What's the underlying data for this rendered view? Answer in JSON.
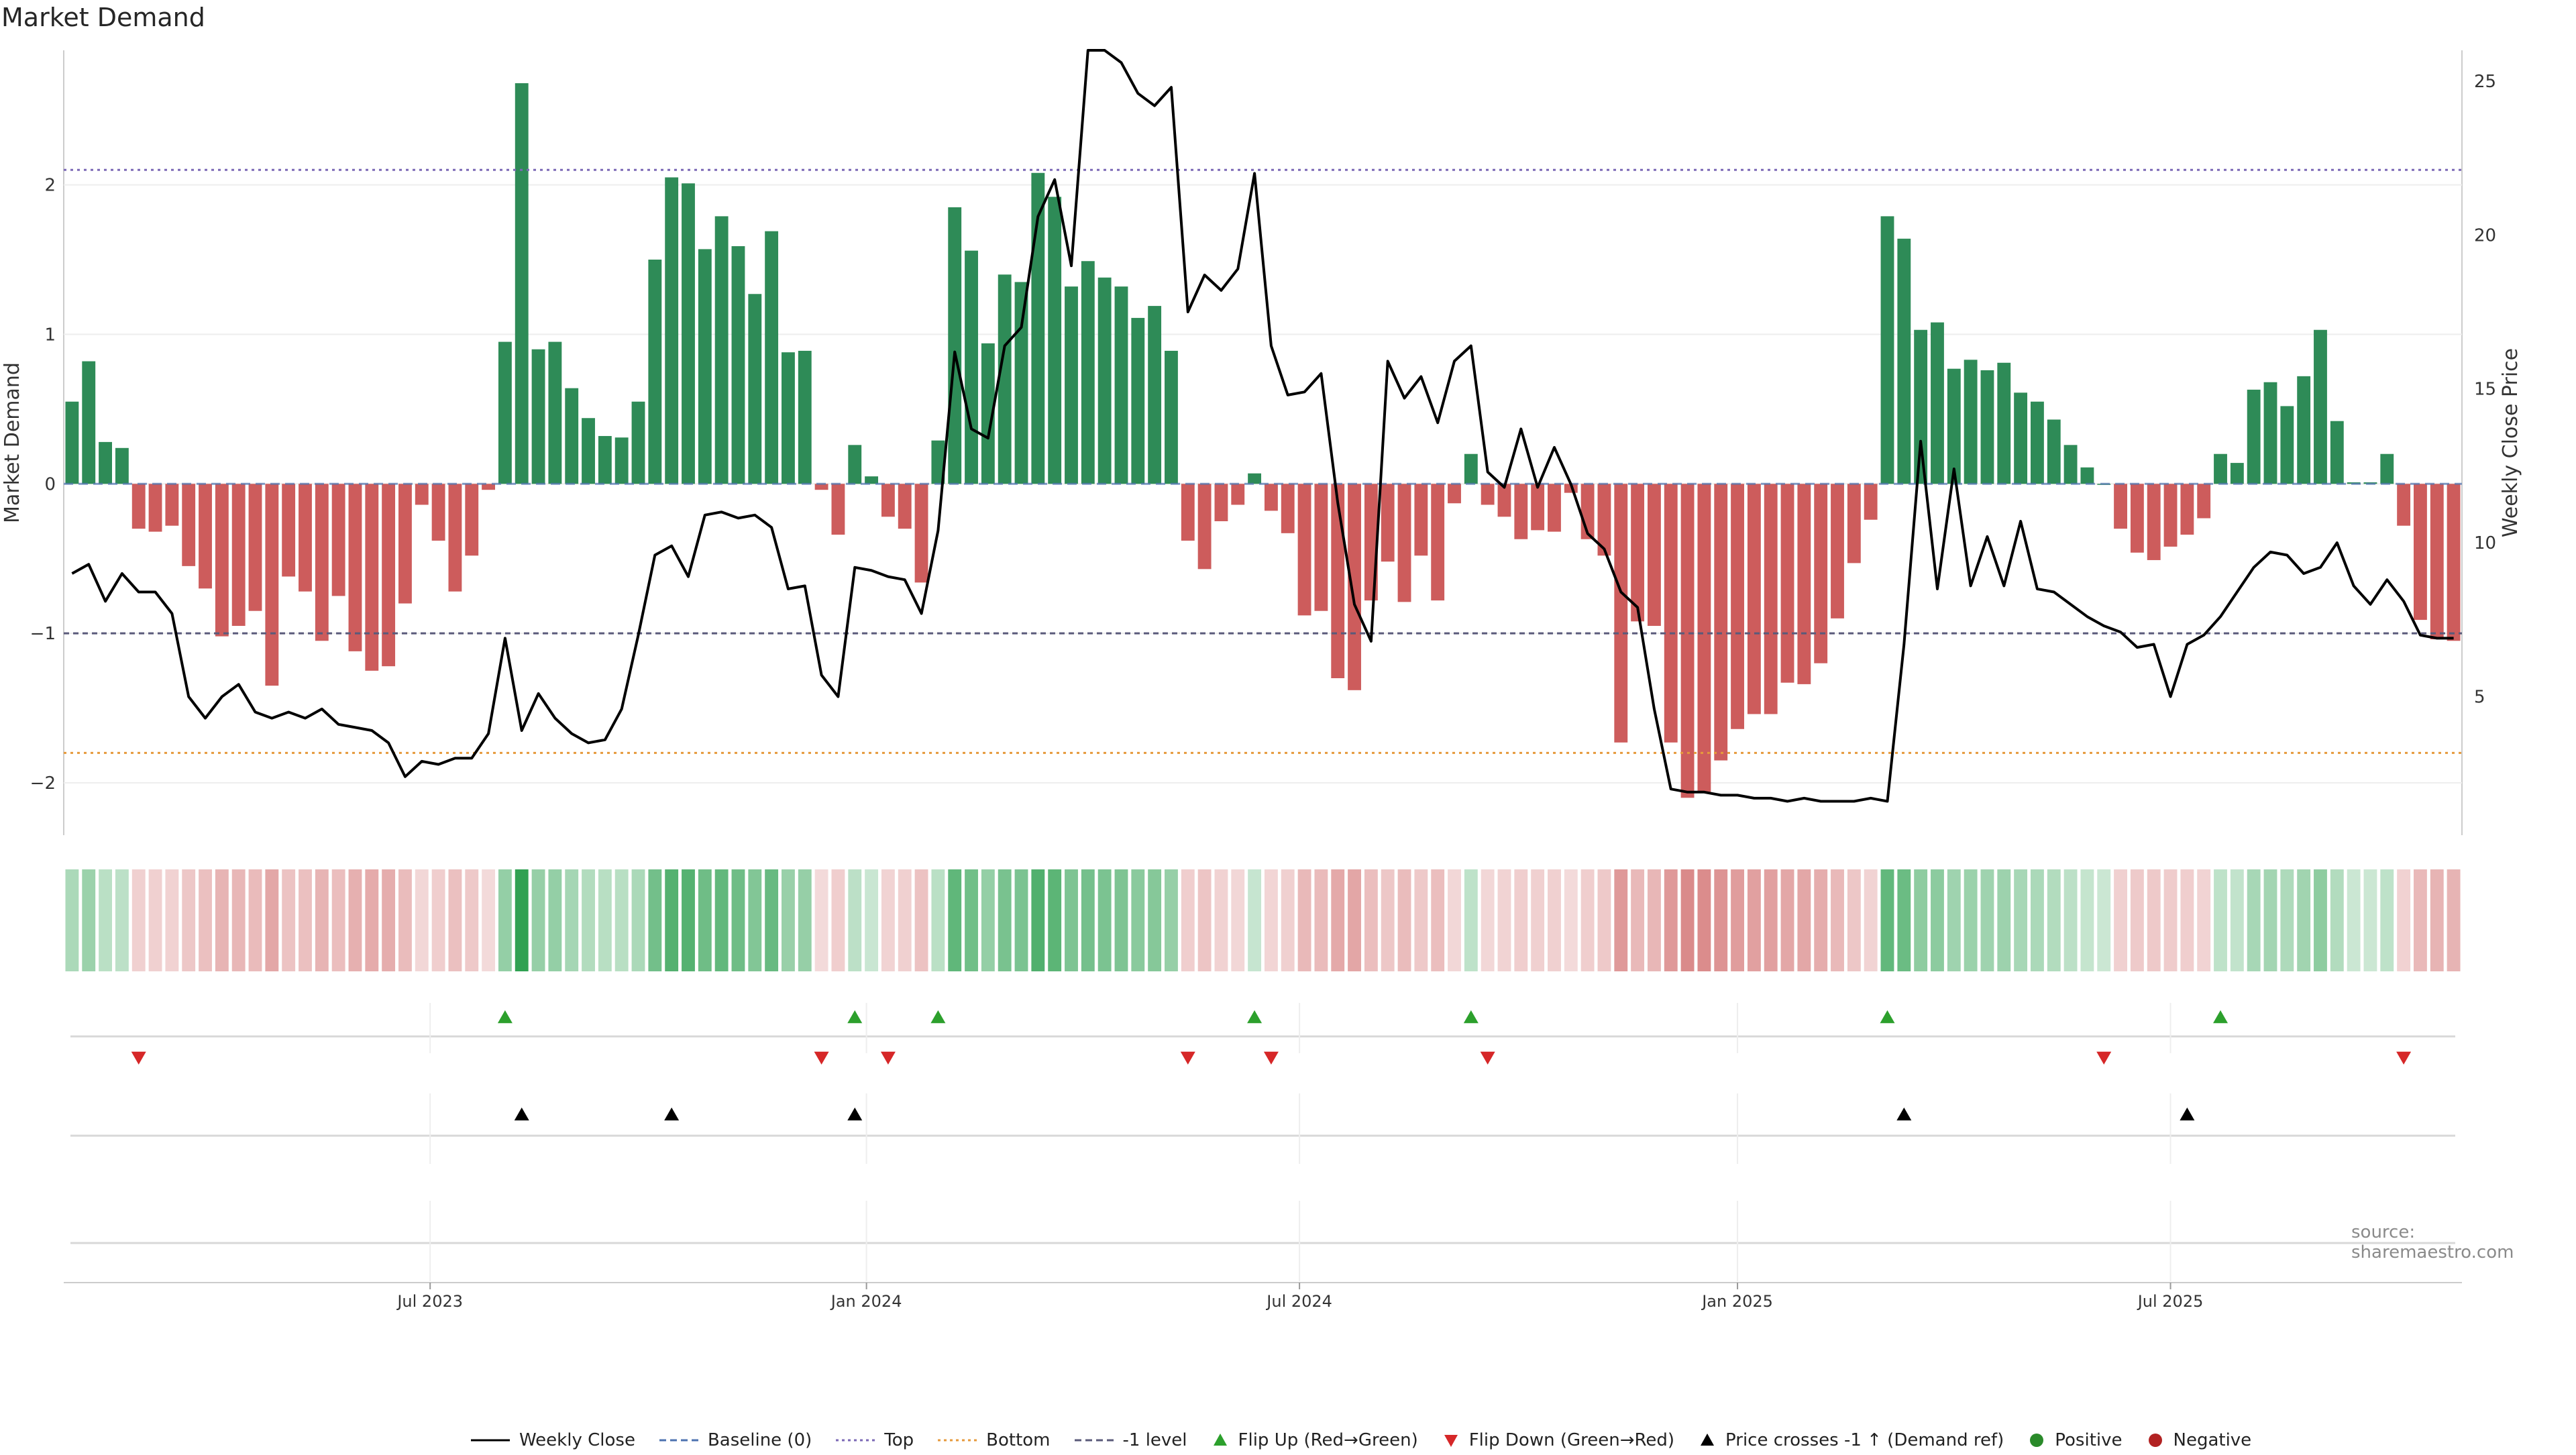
{
  "title": "Market Demand",
  "source": "source: sharemaestro.com",
  "colors": {
    "positive_bar": "#2e8b57",
    "negative_bar": "#cd5c5c",
    "price_line": "#000000",
    "baseline": "#4c72b0",
    "top": "#7b68b6",
    "bottom": "#e69a3c",
    "minus1": "#5a5a7a",
    "flip_up": "#2ca02c",
    "flip_down": "#d62728",
    "cross": "#000000",
    "positive_dot": "#2a8a2a",
    "negative_dot": "#b22222"
  },
  "legend": [
    {
      "label": "Weekly Close",
      "symbol": "line-solid",
      "color": "#000000"
    },
    {
      "label": "Baseline (0)",
      "symbol": "line-dashed",
      "color": "#4c72b0"
    },
    {
      "label": "Top",
      "symbol": "line-dotted",
      "color": "#7b68b6"
    },
    {
      "label": "Bottom",
      "symbol": "line-dotted",
      "color": "#e69a3c"
    },
    {
      "label": "-1 level",
      "symbol": "line-dashed",
      "color": "#5a5a7a"
    },
    {
      "label": "Flip Up (Red→Green)",
      "symbol": "triangle-up",
      "color": "#2ca02c"
    },
    {
      "label": "Flip Down (Green→Red)",
      "symbol": "triangle-down",
      "color": "#d62728"
    },
    {
      "label": "Price crosses -1 ↑ (Demand ref)",
      "symbol": "triangle-up",
      "color": "#000000"
    },
    {
      "label": "Positive",
      "symbol": "dot",
      "color": "#2a8a2a"
    },
    {
      "label": "Negative",
      "symbol": "dot",
      "color": "#b22222"
    }
  ],
  "chart_data": {
    "type": "bar",
    "title": "Market Demand",
    "ylabel_left": "Market Demand",
    "ylabel_right": "Weekly Close Price",
    "ylim_left": [
      -2.35,
      2.9
    ],
    "ylim_right": [
      0.5,
      26
    ],
    "yticks_left": [
      -2,
      -1,
      0,
      1,
      2
    ],
    "yticks_left_labels": [
      "−2",
      "−1",
      "0",
      "1",
      "2"
    ],
    "yticks_right": [
      5,
      10,
      15,
      20,
      25
    ],
    "yticks_right_labels": [
      "5",
      "10",
      "15",
      "20",
      "25"
    ],
    "x_start": "2023-03-12",
    "x_step_days": 7,
    "x_ticks": [
      {
        "label": "Jul 2023",
        "index": 21.5
      },
      {
        "label": "Jan 2024",
        "index": 47.7
      },
      {
        "label": "Jul 2024",
        "index": 73.7
      },
      {
        "label": "Jan 2025",
        "index": 100
      },
      {
        "label": "Jul 2025",
        "index": 126
      }
    ],
    "levels": {
      "top": 2.1,
      "bottom": -1.8,
      "minus1": -1,
      "baseline": 0
    },
    "demand": [
      0.55,
      0.82,
      0.28,
      0.24,
      -0.3,
      -0.32,
      -0.28,
      -0.55,
      -0.7,
      -1.02,
      -0.95,
      -0.85,
      -1.35,
      -0.62,
      -0.72,
      -1.05,
      -0.75,
      -1.12,
      -1.25,
      -1.22,
      -0.8,
      -0.14,
      -0.38,
      -0.72,
      -0.48,
      -0.04,
      0.95,
      2.68,
      0.9,
      0.95,
      0.64,
      0.44,
      0.32,
      0.31,
      0.55,
      1.5,
      2.05,
      2.01,
      1.57,
      1.79,
      1.59,
      1.27,
      1.69,
      0.88,
      0.89,
      -0.04,
      -0.34,
      0.26,
      0.05,
      -0.22,
      -0.3,
      -0.66,
      0.29,
      1.85,
      1.56,
      0.94,
      1.4,
      1.35,
      2.08,
      1.92,
      1.32,
      1.49,
      1.38,
      1.32,
      1.11,
      1.19,
      0.89,
      -0.38,
      -0.57,
      -0.25,
      -0.14,
      0.07,
      -0.18,
      -0.33,
      -0.88,
      -0.85,
      -1.3,
      -1.38,
      -0.78,
      -0.52,
      -0.79,
      -0.48,
      -0.78,
      -0.13,
      0.2,
      -0.14,
      -0.22,
      -0.37,
      -0.31,
      -0.32,
      -0.06,
      -0.37,
      -0.48,
      -1.73,
      -0.92,
      -0.95,
      -1.73,
      -2.1,
      -2.06,
      -1.85,
      -1.64,
      -1.54,
      -1.54,
      -1.33,
      -1.34,
      -1.2,
      -0.9,
      -0.53,
      -0.24,
      1.79,
      1.64,
      1.03,
      1.08,
      0.77,
      0.83,
      0.76,
      0.81,
      0.61,
      0.55,
      0.43,
      0.26,
      0.11,
      0.0,
      -0.3,
      -0.46,
      -0.51,
      -0.42,
      -0.34,
      -0.23,
      0.2,
      0.14,
      0.63,
      0.68,
      0.52,
      0.72,
      1.03,
      0.42,
      0.01,
      0.01,
      0.2,
      -0.28,
      -0.91,
      -1.04,
      -1.05
    ],
    "close": [
      9.0,
      9.3,
      8.1,
      9.0,
      8.4,
      8.4,
      7.7,
      5.0,
      4.3,
      5.0,
      5.4,
      4.5,
      4.3,
      4.5,
      4.3,
      4.6,
      4.1,
      4.0,
      3.9,
      3.5,
      2.4,
      2.9,
      2.8,
      3.0,
      3.0,
      3.8,
      6.9,
      3.9,
      5.1,
      4.3,
      3.8,
      3.5,
      3.6,
      4.6,
      7.0,
      9.6,
      9.9,
      8.9,
      10.9,
      11.0,
      10.8,
      10.9,
      10.5,
      8.5,
      8.6,
      5.7,
      5.0,
      9.2,
      9.1,
      8.9,
      8.8,
      7.7,
      10.4,
      16.2,
      13.7,
      13.4,
      16.4,
      17.0,
      20.6,
      21.8,
      19.0,
      26.0,
      26.0,
      25.6,
      24.6,
      24.2,
      24.8,
      17.5,
      18.7,
      18.2,
      18.9,
      22.0,
      16.4,
      14.8,
      14.9,
      15.5,
      11.3,
      8.0,
      6.8,
      15.9,
      14.7,
      15.4,
      13.9,
      15.9,
      16.4,
      12.3,
      11.8,
      13.7,
      11.8,
      13.1,
      11.9,
      10.3,
      9.8,
      8.4,
      7.9,
      4.6,
      2.0,
      1.9,
      1.9,
      1.8,
      1.8,
      1.7,
      1.7,
      1.6,
      1.7,
      1.6,
      1.6,
      1.6,
      1.7,
      1.6,
      6.7,
      13.3,
      8.5,
      12.4,
      8.6,
      10.2,
      8.6,
      10.7,
      8.5,
      8.4,
      8.0,
      7.6,
      7.3,
      7.1,
      6.6,
      6.7,
      5.0,
      6.7,
      7.0,
      7.6,
      8.4,
      9.2,
      9.7,
      9.6,
      9.0,
      9.2,
      10.0,
      8.6,
      8.0,
      8.8,
      8.1,
      7.0,
      6.9,
      6.9
    ]
  },
  "flip_up_weeks": [
    26,
    47,
    52,
    71,
    84,
    109,
    129
  ],
  "flip_down_weeks": [
    4,
    45,
    49,
    67,
    72,
    85,
    122,
    140
  ],
  "cross_up_weeks": [
    27,
    36,
    47,
    110,
    127
  ]
}
